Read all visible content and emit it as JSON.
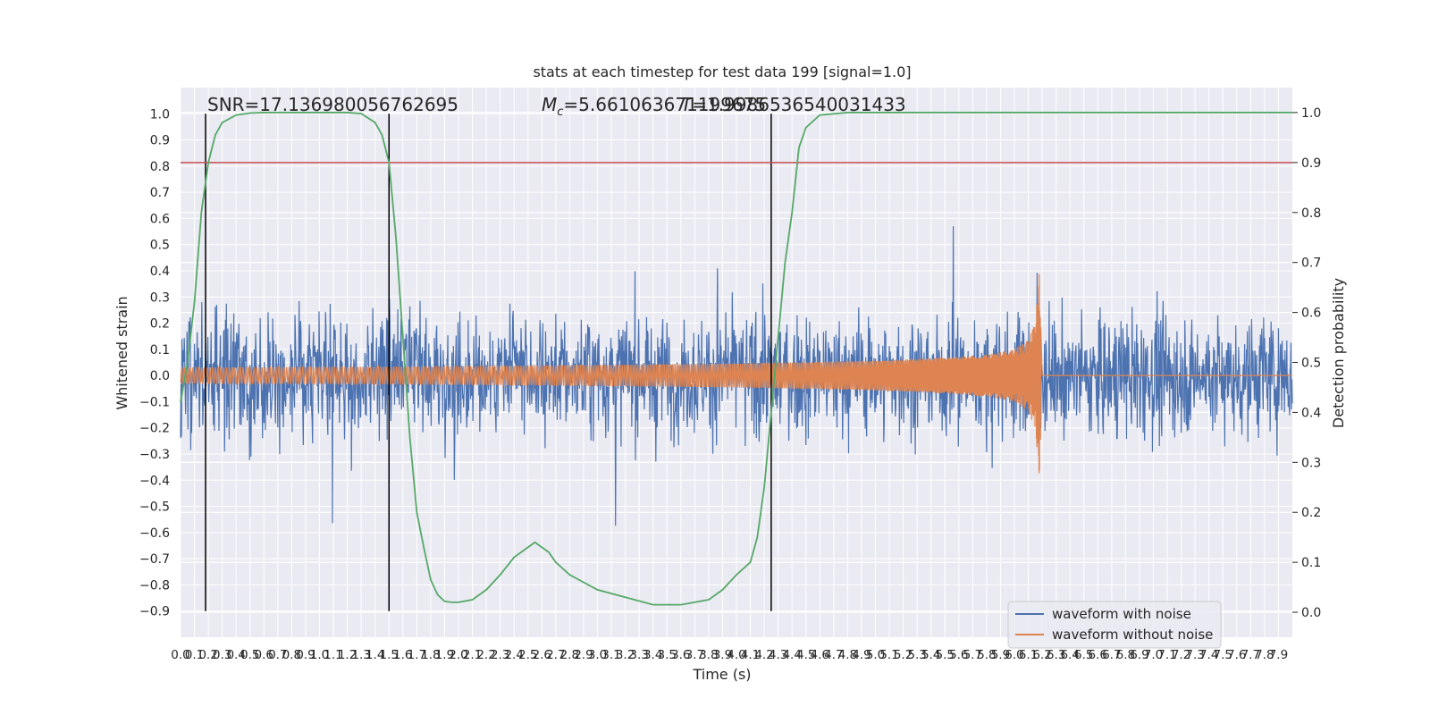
{
  "chart_data": {
    "type": "line",
    "title": "stats at each timestep for test data 199 [signal=1.0]",
    "xlabel": "Time (s)",
    "ylabel": "Whitened strain",
    "y2label": "Detection probability",
    "xlim": [
      0.0,
      8.0
    ],
    "ylim": [
      -1.0,
      1.1
    ],
    "y2lim": [
      -0.05,
      1.05
    ],
    "x_ticks": [
      "0.0",
      "0.1",
      "0.2",
      "0.3",
      "0.4",
      "0.5",
      "0.6",
      "0.7",
      "0.8",
      "0.9",
      "1.0",
      "1.1",
      "1.2",
      "1.3",
      "1.4",
      "1.5",
      "1.6",
      "1.7",
      "1.8",
      "1.9",
      "2.0",
      "2.1",
      "2.2",
      "2.3",
      "2.4",
      "2.5",
      "2.6",
      "2.7",
      "2.8",
      "2.9",
      "3.0",
      "3.1",
      "3.2",
      "3.3",
      "3.4",
      "3.5",
      "3.6",
      "3.7",
      "3.8",
      "3.9",
      "4.0",
      "4.1",
      "4.2",
      "4.3",
      "4.4",
      "4.5",
      "4.6",
      "4.7",
      "4.8",
      "4.9",
      "5.0",
      "5.1",
      "5.2",
      "5.3",
      "5.4",
      "5.5",
      "5.6",
      "5.7",
      "5.8",
      "5.9",
      "6.0",
      "6.1",
      "6.2",
      "6.3",
      "6.4",
      "6.5",
      "6.6",
      "6.7",
      "6.8",
      "6.9",
      "7.0",
      "7.1",
      "7.2",
      "7.3",
      "7.4",
      "7.5",
      "7.6",
      "7.7",
      "7.8",
      "7.9"
    ],
    "y_ticks": [
      "1.0",
      "0.9",
      "0.8",
      "0.7",
      "0.6",
      "0.5",
      "0.4",
      "0.3",
      "0.2",
      "0.1",
      "0.0",
      "−0.1",
      "−0.2",
      "−0.3",
      "−0.4",
      "−0.5",
      "−0.6",
      "−0.7",
      "−0.8",
      "−0.9"
    ],
    "y2_ticks": [
      "1.0",
      "0.9",
      "0.8",
      "0.7",
      "0.6",
      "0.5",
      "0.4",
      "0.3",
      "0.2",
      "0.1",
      "0.0"
    ],
    "annotations": {
      "snr": "SNR=17.136980056762695",
      "mc_prefix": "=5.661063671199675",
      "mc_symbol": "M",
      "mc_sub": "c",
      "overlap": "=1.9986536540031433",
      "overlap_symbol": "T"
    },
    "series": [
      {
        "name": "waveform with noise",
        "color": "#4c72b0",
        "noise_sigma": 0.21,
        "x": [
          0.0,
          8.0
        ]
      },
      {
        "name": "waveform without noise",
        "color": "#dd8452",
        "envelope_t": [
          0.0,
          1.0,
          2.0,
          3.0,
          4.0,
          5.0,
          5.5,
          5.8,
          6.0,
          6.1,
          6.15,
          6.18,
          6.2,
          8.0
        ],
        "envelope_amp": [
          0.03,
          0.032,
          0.035,
          0.04,
          0.046,
          0.057,
          0.068,
          0.08,
          0.1,
          0.14,
          0.2,
          0.4,
          0.0,
          0.0
        ]
      },
      {
        "name": "detection probability",
        "color": "#55a868",
        "axis": "right",
        "x": [
          0.0,
          0.05,
          0.1,
          0.15,
          0.2,
          0.25,
          0.3,
          0.4,
          0.5,
          0.6,
          0.8,
          1.0,
          1.2,
          1.3,
          1.4,
          1.45,
          1.5,
          1.55,
          1.6,
          1.65,
          1.7,
          1.75,
          1.8,
          1.85,
          1.9,
          1.95,
          2.0,
          2.1,
          2.2,
          2.3,
          2.4,
          2.5,
          2.55,
          2.6,
          2.65,
          2.7,
          2.8,
          3.0,
          3.2,
          3.4,
          3.6,
          3.8,
          3.9,
          4.0,
          4.1,
          4.15,
          4.2,
          4.25,
          4.3,
          4.35,
          4.4,
          4.45,
          4.5,
          4.6,
          4.8,
          5.0,
          6.0,
          7.0,
          8.0
        ],
        "y": [
          0.42,
          0.5,
          0.62,
          0.8,
          0.9,
          0.955,
          0.98,
          0.995,
          0.999,
          1.0,
          1.0,
          1.0,
          1.0,
          0.998,
          0.98,
          0.955,
          0.9,
          0.75,
          0.55,
          0.35,
          0.2,
          0.13,
          0.065,
          0.035,
          0.022,
          0.02,
          0.02,
          0.025,
          0.045,
          0.075,
          0.11,
          0.13,
          0.14,
          0.13,
          0.12,
          0.1,
          0.075,
          0.045,
          0.03,
          0.015,
          0.015,
          0.025,
          0.045,
          0.075,
          0.1,
          0.15,
          0.25,
          0.4,
          0.55,
          0.7,
          0.8,
          0.93,
          0.97,
          0.995,
          1.0,
          1.0,
          1.0,
          1.0,
          1.0
        ]
      },
      {
        "name": "threshold",
        "color": "#c44e52",
        "axis": "right",
        "value": 0.9
      }
    ],
    "vlines": [
      0.18,
      1.5,
      4.25
    ],
    "vlines_color": "#000000",
    "legend_placement": "lower-right",
    "grid": true,
    "style": "seaborn darkgrid"
  }
}
